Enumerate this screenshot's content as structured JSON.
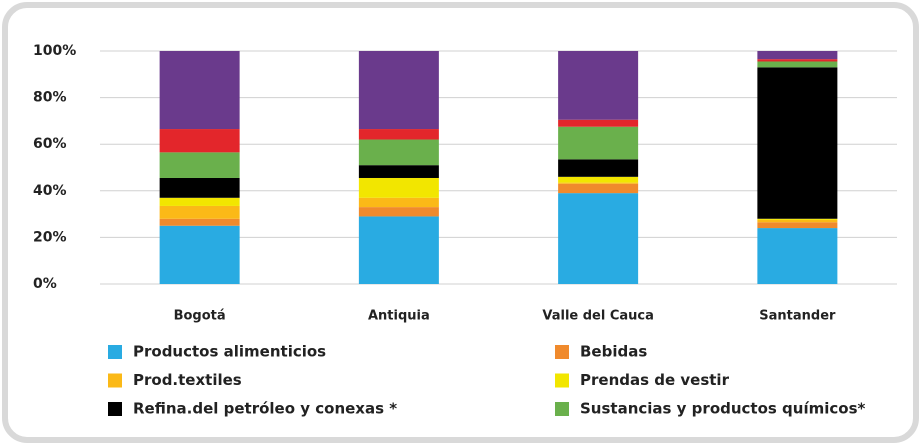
{
  "chart_data": {
    "type": "stacked_bar",
    "categories": [
      "Bogotá",
      "Antiquia",
      "Valle del Cauca",
      "Santander"
    ],
    "series": [
      {
        "name": "Productos alimenticios",
        "color": "#29abe2",
        "values": [
          25,
          29,
          39,
          24
        ]
      },
      {
        "name": "Bebidas",
        "color": "#f08a2c",
        "values": [
          3,
          4,
          4,
          2.5
        ]
      },
      {
        "name": "Prod.textiles",
        "color": "#fbb917",
        "values": [
          5.5,
          4,
          0.5,
          1
        ]
      },
      {
        "name": "Prendas de vestir",
        "color": "#f2e600",
        "values": [
          3.5,
          8.5,
          2.5,
          0.5
        ]
      },
      {
        "name": "Refina.del petróleo y conexas *",
        "color": "#000000",
        "values": [
          8.5,
          5.5,
          7.5,
          65
        ]
      },
      {
        "name": "Sustancias y productos químicos*",
        "color": "#6ab04c",
        "values": [
          11,
          11,
          14,
          2.5
        ]
      },
      {
        "color": "#e3262b",
        "values": [
          10,
          4.5,
          3,
          1
        ]
      },
      {
        "color": "#6a3a8c",
        "values": [
          33.5,
          33.5,
          29.5,
          3.5
        ]
      }
    ],
    "ylim": [
      0,
      100
    ],
    "yticks": [
      {
        "value": 0,
        "label": "0%"
      },
      {
        "value": 20,
        "label": "20%"
      },
      {
        "value": 40,
        "label": "40%"
      },
      {
        "value": 60,
        "label": "60%"
      },
      {
        "value": 80,
        "label": "80%"
      },
      {
        "value": 100,
        "label": "100%"
      }
    ],
    "grid": true
  }
}
